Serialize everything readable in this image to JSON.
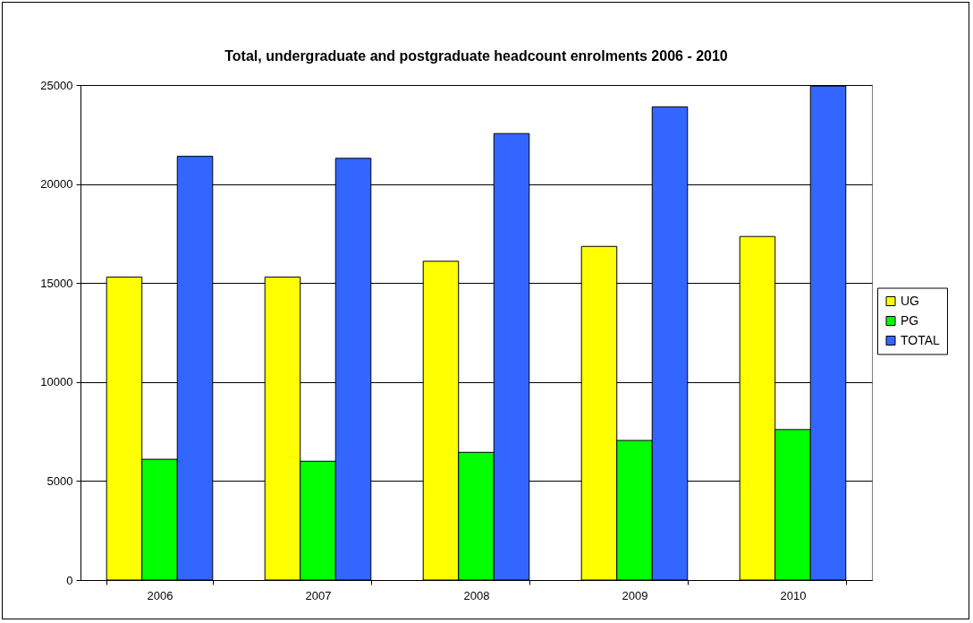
{
  "chart_data": {
    "type": "bar",
    "title": "Total, undergraduate and postgraduate headcount enrolments 2006 - 2010",
    "categories": [
      "2006",
      "2007",
      "2008",
      "2009",
      "2010"
    ],
    "series": [
      {
        "name": "UG",
        "color": "#ffff00",
        "values": [
          15300,
          15300,
          16100,
          16850,
          17350
        ]
      },
      {
        "name": "PG",
        "color": "#00ff00",
        "values": [
          6100,
          6000,
          6450,
          7050,
          7600
        ]
      },
      {
        "name": "TOTAL",
        "color": "#3366ff",
        "values": [
          21400,
          21300,
          22550,
          23900,
          24950
        ]
      }
    ],
    "ylim": [
      0,
      25000
    ],
    "yticks": [
      0,
      5000,
      10000,
      15000,
      20000,
      25000
    ],
    "grid": "y",
    "legend": "right"
  }
}
